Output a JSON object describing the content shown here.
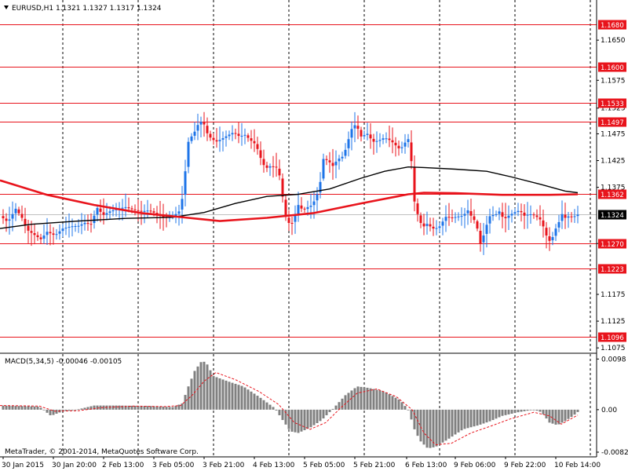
{
  "header": {
    "symbol_line": "EURUSD,H1  1.1321 1.1327 1.1317 1.1324",
    "indicator_line": "MACD(5,34,5) -0.00046 -0.00105",
    "copyright": "MetaTrader, © 2001-2014, MetaQuotes Software Corp."
  },
  "colors": {
    "bull": "#1E74E8",
    "bear": "#E8141C",
    "level": "#E8141C",
    "ma_red": "#E8141C",
    "ma_black": "#000000",
    "histogram": "#808080",
    "signal": "#E8141C",
    "grid": "#000000"
  },
  "chart_data": [
    {
      "type": "candlestick",
      "ylim": [
        1.1065,
        1.1725
      ],
      "y_ticks": [
        "1.1650",
        "1.1575",
        "1.1523",
        "1.1475",
        "1.1425",
        "1.1375",
        "1.1270",
        "1.1175",
        "1.1125",
        "1.1075"
      ],
      "x_labels": [
        "30 Jan 2015",
        "30 Jan 20:00",
        "2 Feb 13:00",
        "3 Feb 05:00",
        "3 Feb 21:00",
        "4 Feb 13:00",
        "5 Feb 05:00",
        "5 Feb 21:00",
        "6 Feb 13:00",
        "9 Feb 06:00",
        "9 Feb 22:00",
        "10 Feb 14:00"
      ],
      "levels": [
        {
          "label": "1.1680",
          "value": 1.168
        },
        {
          "label": "1.1600",
          "value": 1.16
        },
        {
          "label": "1.1533",
          "value": 1.1533
        },
        {
          "label": "1.1497",
          "value": 1.1497
        },
        {
          "label": "1.1362",
          "value": 1.1362
        },
        {
          "label": "1.1270",
          "value": 1.127
        },
        {
          "label": "1.1223",
          "value": 1.1223
        },
        {
          "label": "1.1096",
          "value": 1.1096
        }
      ],
      "current_price": {
        "label": "1.1324",
        "value": 1.1324
      },
      "close_path": [
        [
          0,
          1.1322
        ],
        [
          10,
          1.131
        ],
        [
          20,
          1.1335
        ],
        [
          28,
          1.1318
        ],
        [
          35,
          1.1295
        ],
        [
          45,
          1.1285
        ],
        [
          52,
          1.1278
        ],
        [
          60,
          1.1292
        ],
        [
          70,
          1.1285
        ],
        [
          80,
          1.1298
        ],
        [
          90,
          1.1302
        ],
        [
          100,
          1.1303
        ],
        [
          110,
          1.131
        ],
        [
          115,
          1.1302
        ],
        [
          120,
          1.1322
        ],
        [
          125,
          1.134
        ],
        [
          130,
          1.1322
        ],
        [
          140,
          1.133
        ],
        [
          150,
          1.1335
        ],
        [
          160,
          1.1338
        ],
        [
          170,
          1.1333
        ],
        [
          180,
          1.133
        ],
        [
          190,
          1.1332
        ],
        [
          200,
          1.1325
        ],
        [
          210,
          1.1318
        ],
        [
          220,
          1.132
        ],
        [
          228,
          1.133
        ],
        [
          234,
          1.1365
        ],
        [
          238,
          1.1445
        ],
        [
          242,
          1.1475
        ],
        [
          246,
          1.1465
        ],
        [
          250,
          1.1493
        ],
        [
          254,
          1.149
        ],
        [
          258,
          1.1505
        ],
        [
          262,
          1.148
        ],
        [
          268,
          1.1468
        ],
        [
          275,
          1.146
        ],
        [
          282,
          1.1465
        ],
        [
          290,
          1.1472
        ],
        [
          298,
          1.1478
        ],
        [
          305,
          1.147
        ],
        [
          312,
          1.1473
        ],
        [
          320,
          1.1462
        ],
        [
          326,
          1.1455
        ],
        [
          332,
          1.143
        ],
        [
          338,
          1.141
        ],
        [
          345,
          1.1415
        ],
        [
          352,
          1.1412
        ],
        [
          358,
          1.139
        ],
        [
          362,
          1.1325
        ],
        [
          366,
          1.1315
        ],
        [
          370,
          1.1302
        ],
        [
          375,
          1.1318
        ],
        [
          380,
          1.1342
        ],
        [
          386,
          1.1332
        ],
        [
          392,
          1.1338
        ],
        [
          398,
          1.1342
        ],
        [
          404,
          1.1362
        ],
        [
          408,
          1.1385
        ],
        [
          412,
          1.1428
        ],
        [
          418,
          1.1425
        ],
        [
          424,
          1.1415
        ],
        [
          430,
          1.1427
        ],
        [
          436,
          1.1432
        ],
        [
          440,
          1.1445
        ],
        [
          446,
          1.1475
        ],
        [
          450,
          1.1493
        ],
        [
          455,
          1.1488
        ],
        [
          460,
          1.147
        ],
        [
          468,
          1.1475
        ],
        [
          475,
          1.146
        ],
        [
          482,
          1.1462
        ],
        [
          490,
          1.1468
        ],
        [
          498,
          1.1462
        ],
        [
          505,
          1.1452
        ],
        [
          510,
          1.1445
        ],
        [
          515,
          1.1457
        ],
        [
          520,
          1.1465
        ],
        [
          523,
          1.1455
        ],
        [
          526,
          1.1362
        ],
        [
          530,
          1.1335
        ],
        [
          535,
          1.131
        ],
        [
          540,
          1.1302
        ],
        [
          545,
          1.1308
        ],
        [
          550,
          1.1298
        ],
        [
          555,
          1.1298
        ],
        [
          560,
          1.1302
        ],
        [
          568,
          1.132
        ],
        [
          575,
          1.1318
        ],
        [
          582,
          1.132
        ],
        [
          590,
          1.1322
        ],
        [
          596,
          1.1332
        ],
        [
          600,
          1.1322
        ],
        [
          605,
          1.1312
        ],
        [
          608,
          1.1298
        ],
        [
          612,
          1.127
        ],
        [
          616,
          1.1285
        ],
        [
          620,
          1.1305
        ],
        [
          625,
          1.1325
        ],
        [
          630,
          1.1322
        ],
        [
          636,
          1.133
        ],
        [
          642,
          1.1315
        ],
        [
          648,
          1.1322
        ],
        [
          655,
          1.1328
        ],
        [
          662,
          1.1332
        ],
        [
          668,
          1.1322
        ],
        [
          675,
          1.1325
        ],
        [
          682,
          1.1322
        ],
        [
          688,
          1.1315
        ],
        [
          692,
          1.1302
        ],
        [
          696,
          1.1285
        ],
        [
          700,
          1.1275
        ],
        [
          704,
          1.1282
        ],
        [
          708,
          1.1298
        ],
        [
          712,
          1.131
        ],
        [
          716,
          1.1325
        ],
        [
          720,
          1.1318
        ],
        [
          726,
          1.1322
        ],
        [
          730,
          1.1318
        ],
        [
          734,
          1.1324
        ]
      ],
      "ma_red": [
        [
          0,
          1.1388
        ],
        [
          60,
          1.1361
        ],
        [
          120,
          1.1342
        ],
        [
          180,
          1.1327
        ],
        [
          240,
          1.1318
        ],
        [
          280,
          1.1312
        ],
        [
          340,
          1.1318
        ],
        [
          400,
          1.1327
        ],
        [
          460,
          1.1345
        ],
        [
          520,
          1.1362
        ],
        [
          540,
          1.1365
        ],
        [
          580,
          1.1364
        ],
        [
          640,
          1.1361
        ],
        [
          700,
          1.1361
        ],
        [
          736,
          1.1362
        ]
      ],
      "ma_black": [
        [
          0,
          1.1298
        ],
        [
          40,
          1.1306
        ],
        [
          100,
          1.1312
        ],
        [
          160,
          1.1317
        ],
        [
          220,
          1.1319
        ],
        [
          260,
          1.1328
        ],
        [
          300,
          1.1345
        ],
        [
          340,
          1.1358
        ],
        [
          380,
          1.1362
        ],
        [
          420,
          1.1372
        ],
        [
          460,
          1.1392
        ],
        [
          490,
          1.1405
        ],
        [
          520,
          1.1413
        ],
        [
          540,
          1.1412
        ],
        [
          580,
          1.1409
        ],
        [
          620,
          1.1405
        ],
        [
          650,
          1.1395
        ],
        [
          690,
          1.138
        ],
        [
          720,
          1.1368
        ],
        [
          736,
          1.1365
        ]
      ]
    },
    {
      "type": "histogram",
      "name": "MACD(5,34,5)",
      "ylim": [
        -0.00822,
        0.00985
      ],
      "y_ticks": [
        "0.0098",
        "0.00",
        "-0.00822"
      ],
      "histogram": [
        [
          0,
          0.0008
        ],
        [
          50,
          0.0006
        ],
        [
          65,
          -0.0012
        ],
        [
          80,
          -0.0003
        ],
        [
          95,
          -0.0001
        ],
        [
          120,
          0.0008
        ],
        [
          150,
          0.0008
        ],
        [
          190,
          0.0007
        ],
        [
          220,
          0.0005
        ],
        [
          232,
          0.0012
        ],
        [
          240,
          0.0045
        ],
        [
          248,
          0.0075
        ],
        [
          256,
          0.0092
        ],
        [
          262,
          0.0093
        ],
        [
          272,
          0.0065
        ],
        [
          290,
          0.0055
        ],
        [
          310,
          0.0045
        ],
        [
          330,
          0.0025
        ],
        [
          350,
          0.0003
        ],
        [
          360,
          -0.002
        ],
        [
          370,
          -0.0042
        ],
        [
          380,
          -0.0045
        ],
        [
          395,
          -0.0035
        ],
        [
          410,
          -0.002
        ],
        [
          425,
          0.0003
        ],
        [
          440,
          0.0028
        ],
        [
          455,
          0.0045
        ],
        [
          470,
          0.0042
        ],
        [
          490,
          0.0035
        ],
        [
          510,
          0.0018
        ],
        [
          520,
          0.0
        ],
        [
          528,
          -0.0038
        ],
        [
          535,
          -0.006
        ],
        [
          545,
          -0.0075
        ],
        [
          555,
          -0.0072
        ],
        [
          570,
          -0.0058
        ],
        [
          590,
          -0.0038
        ],
        [
          610,
          -0.003
        ],
        [
          625,
          -0.0022
        ],
        [
          640,
          -0.0012
        ],
        [
          660,
          -0.0005
        ],
        [
          680,
          0.0
        ],
        [
          690,
          -0.0005
        ],
        [
          700,
          -0.0025
        ],
        [
          710,
          -0.003
        ],
        [
          720,
          -0.0022
        ],
        [
          730,
          -0.0012
        ],
        [
          736,
          -0.00046
        ]
      ],
      "signal": [
        [
          0,
          0.0008
        ],
        [
          50,
          0.0007
        ],
        [
          70,
          -0.0003
        ],
        [
          100,
          -0.0002
        ],
        [
          130,
          0.0004
        ],
        [
          170,
          0.0007
        ],
        [
          210,
          0.0006
        ],
        [
          230,
          0.0008
        ],
        [
          245,
          0.0028
        ],
        [
          260,
          0.0055
        ],
        [
          275,
          0.0072
        ],
        [
          300,
          0.0058
        ],
        [
          330,
          0.0035
        ],
        [
          355,
          0.001
        ],
        [
          375,
          -0.0025
        ],
        [
          395,
          -0.0038
        ],
        [
          415,
          -0.0025
        ],
        [
          435,
          0.0005
        ],
        [
          455,
          0.0032
        ],
        [
          480,
          0.004
        ],
        [
          505,
          0.0025
        ],
        [
          525,
          0.0
        ],
        [
          540,
          -0.0045
        ],
        [
          555,
          -0.0068
        ],
        [
          575,
          -0.0065
        ],
        [
          600,
          -0.0045
        ],
        [
          625,
          -0.0032
        ],
        [
          650,
          -0.0018
        ],
        [
          680,
          -0.0005
        ],
        [
          700,
          -0.0012
        ],
        [
          715,
          -0.0028
        ],
        [
          736,
          -0.00105
        ]
      ]
    }
  ]
}
